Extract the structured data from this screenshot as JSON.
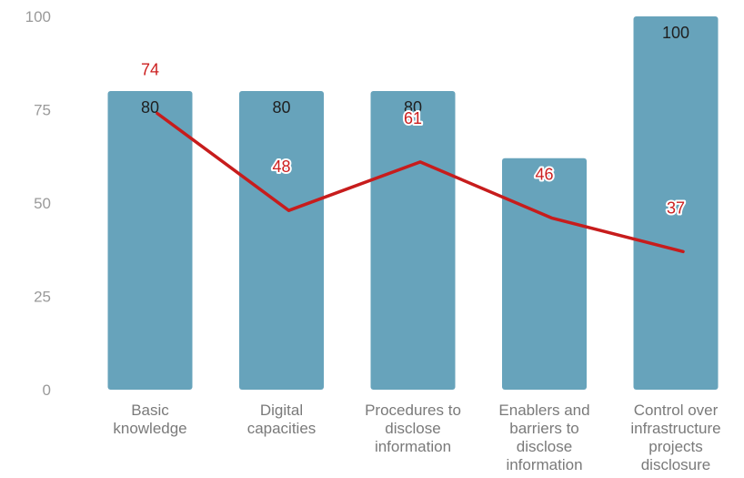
{
  "chart_data": {
    "type": "bar",
    "title": "",
    "xlabel": "",
    "ylabel": "",
    "ylim": [
      0,
      100
    ],
    "yticks": [
      0,
      25,
      50,
      75,
      100
    ],
    "categories": [
      [
        "Basic",
        "knowledge"
      ],
      [
        "Digital",
        "capacities"
      ],
      [
        "Procedures to",
        "disclose",
        "information"
      ],
      [
        "Enablers and",
        "barriers to",
        "disclose",
        "information"
      ],
      [
        "Control over",
        "infrastructure",
        "projects",
        "disclosure"
      ]
    ],
    "series": [
      {
        "type": "bar",
        "values": [
          80,
          80,
          80,
          62,
          100
        ],
        "labels": [
          "80",
          "80",
          "80",
          "",
          "100"
        ],
        "color": "#67a3bb"
      },
      {
        "type": "line",
        "values": [
          74,
          48,
          61,
          46,
          37
        ],
        "labels": [
          "74",
          "48",
          "61",
          "46",
          "37"
        ],
        "color": "#c71c1c"
      }
    ],
    "grid": false,
    "legend": "none"
  }
}
